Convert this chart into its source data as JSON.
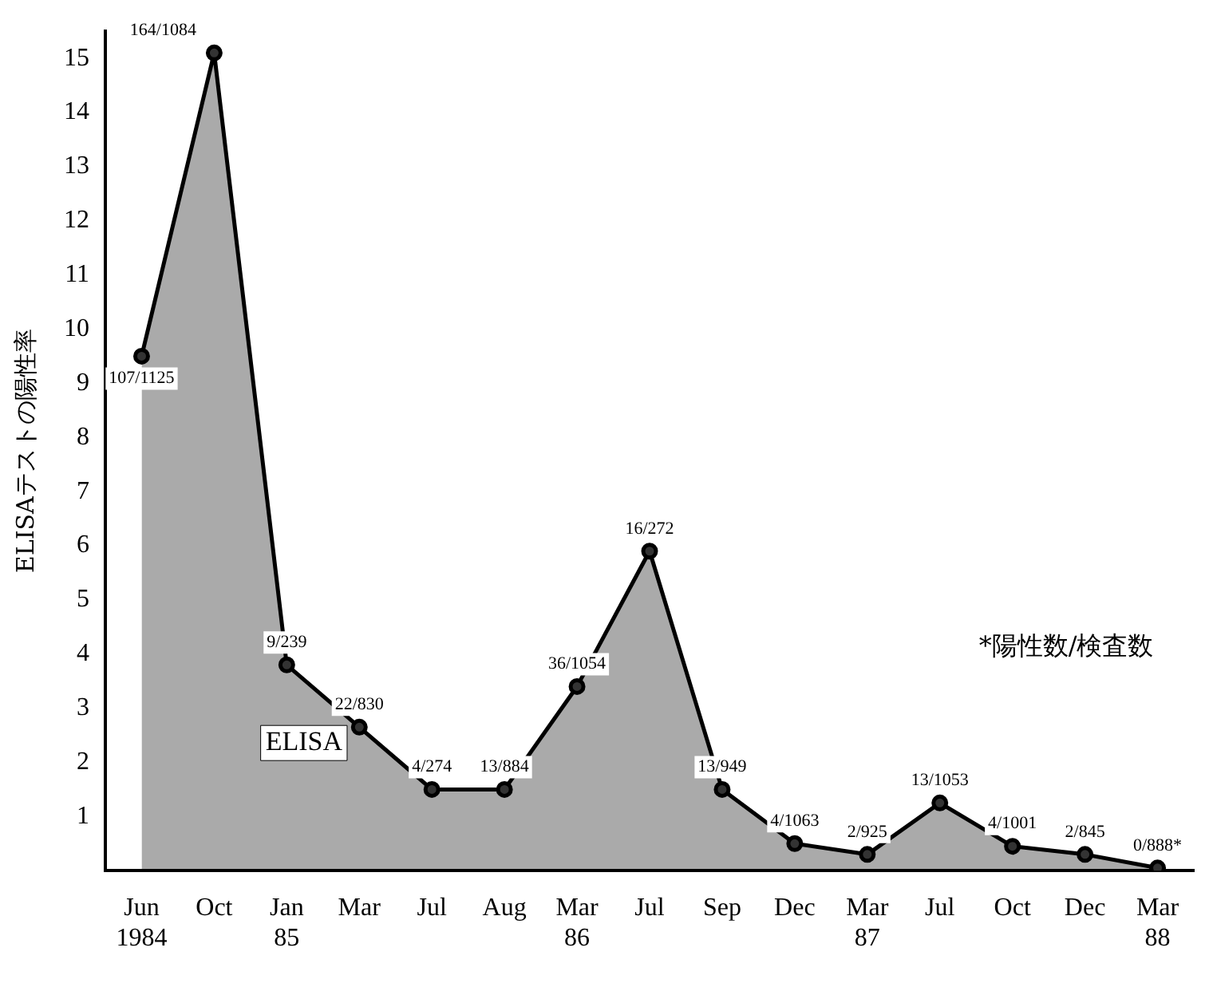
{
  "chart_data": {
    "type": "area",
    "ylabel": "ELISAテストの陽性率",
    "categories": [
      "Jun\n1984",
      "Oct",
      "Jan\n85",
      "Mar",
      "Jul",
      "Aug",
      "Mar\n86",
      "Jul",
      "Sep",
      "Dec",
      "Mar\n87",
      "Jul",
      "Oct",
      "Dec",
      "Mar\n88"
    ],
    "series": [
      {
        "color": "#000000",
        "values": [
          9.5,
          15.1,
          3.8,
          2.65,
          1.5,
          1.5,
          3.4,
          5.9,
          1.5,
          0.5,
          0.3,
          1.25,
          0.45,
          0.3,
          0.05
        ],
        "value_labels": [
          "107/1125",
          "164/1084",
          "9/239",
          "22/830",
          "4/274",
          "13/884",
          "36/1054",
          "16/272",
          "13/949",
          "4/1063",
          "2/925",
          "13/1053",
          "4/1001",
          "2/845",
          "0/888*"
        ]
      }
    ],
    "ylim": [
      0,
      15.5
    ],
    "yticks": [
      1,
      2,
      3,
      4,
      5,
      6,
      7,
      8,
      9,
      10,
      11,
      12,
      13,
      14,
      15
    ],
    "grid": false,
    "legend": false,
    "marker": "circle",
    "line_style": "solid",
    "annotations": [
      "ELISA",
      "*陽性数/検査数"
    ]
  }
}
